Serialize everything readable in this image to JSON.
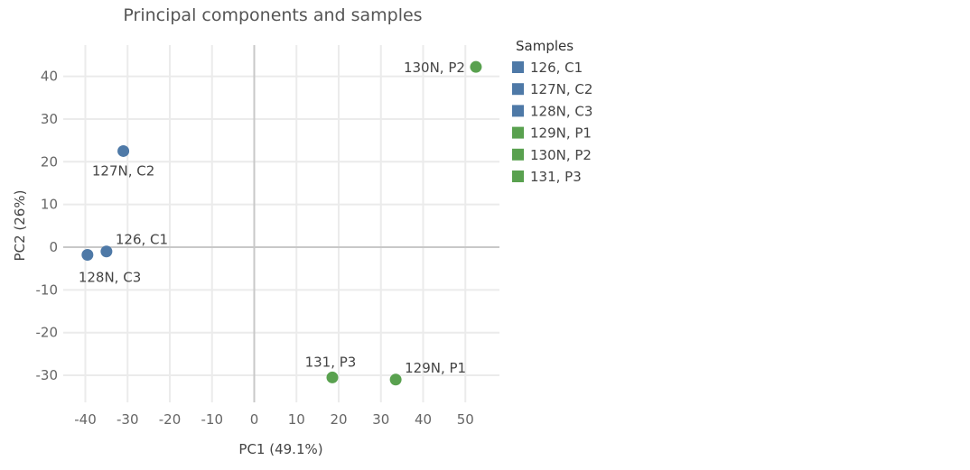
{
  "chart_data": {
    "type": "scatter",
    "title": "Principal components and samples",
    "xlabel": "PC1 (49.1%)",
    "ylabel": "PC2 (26%)",
    "xlim": [
      -45,
      58
    ],
    "ylim": [
      -37,
      47
    ],
    "xticks": [
      -40,
      -30,
      -20,
      -10,
      0,
      10,
      20,
      30,
      40,
      50
    ],
    "yticks": [
      40,
      30,
      20,
      10,
      0,
      -10,
      -20,
      -30
    ],
    "grid": true,
    "legend": {
      "title": "Samples",
      "placement": "right",
      "items": [
        {
          "label": "126, C1",
          "color": "#4e79a7"
        },
        {
          "label": "127N, C2",
          "color": "#4e79a7"
        },
        {
          "label": "128N, C3",
          "color": "#4e79a7"
        },
        {
          "label": "129N, P1",
          "color": "#59a14f"
        },
        {
          "label": "130N, P2",
          "color": "#59a14f"
        },
        {
          "label": "131, P3",
          "color": "#59a14f"
        }
      ]
    },
    "points": [
      {
        "label": "126, C1",
        "x": -35,
        "y": -1,
        "color": "#4e79a7",
        "label_pos": "above-right"
      },
      {
        "label": "127N, C2",
        "x": -31,
        "y": 22.5,
        "color": "#4e79a7",
        "label_pos": "below"
      },
      {
        "label": "128N, C3",
        "x": -39.5,
        "y": -1.8,
        "color": "#4e79a7",
        "label_pos": "below-right"
      },
      {
        "label": "129N, P1",
        "x": 33.5,
        "y": -31,
        "color": "#59a14f",
        "label_pos": "above-right"
      },
      {
        "label": "130N, P2",
        "x": 52.5,
        "y": 42.2,
        "color": "#59a14f",
        "label_pos": "left"
      },
      {
        "label": "131, P3",
        "x": 18.5,
        "y": -30.5,
        "color": "#59a14f",
        "label_pos": "above"
      }
    ]
  }
}
